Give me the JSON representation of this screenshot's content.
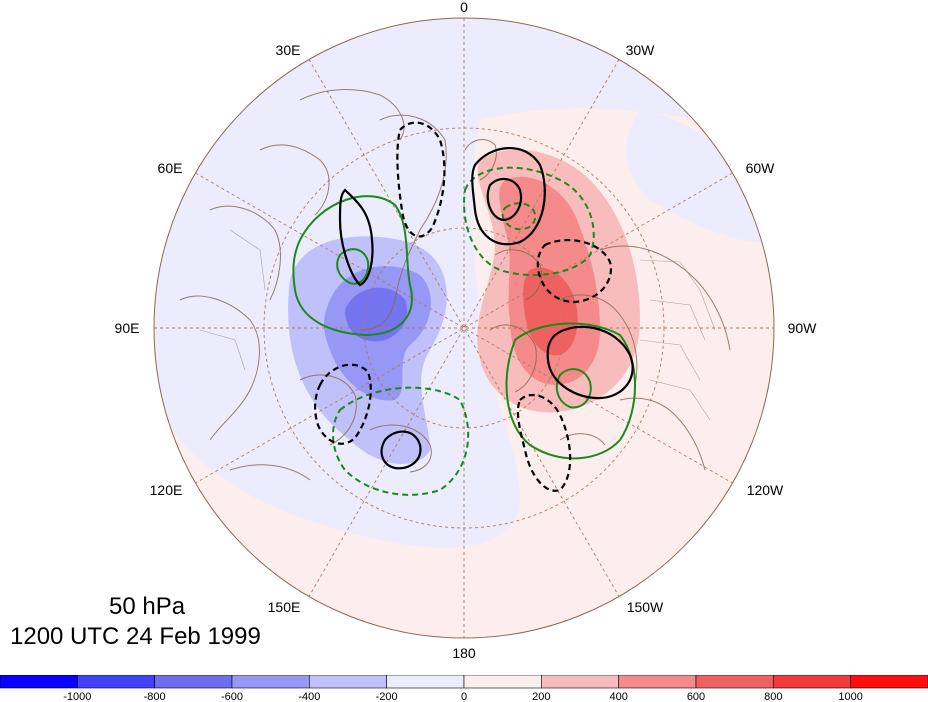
{
  "map": {
    "projection": "north-polar-stereographic",
    "longitude_labels": [
      "0",
      "30W",
      "60W",
      "90W",
      "120W",
      "150W",
      "180",
      "150E",
      "120E",
      "90E",
      "60E",
      "30E"
    ],
    "graticule": "dashed",
    "coastlines": true,
    "political_boundaries": true
  },
  "caption": {
    "level": "50 hPa",
    "time": "1200 UTC 24 Feb 1999"
  },
  "colorbar": {
    "tick_labels": [
      "-1000",
      "-800",
      "-600",
      "-400",
      "-200",
      "0",
      "200",
      "400",
      "600",
      "800",
      "1000"
    ],
    "colors": [
      "#0a00ff",
      "#4141f7",
      "#6d6df0",
      "#9797f5",
      "#c0c0fa",
      "#ececfd",
      "#fdeeee",
      "#f9bcbc",
      "#f48a8a",
      "#ef6161",
      "#f23a3a",
      "#ff0c0c"
    ]
  },
  "shading": {
    "negative_colors": [
      "#ececfd",
      "#c0c0fa",
      "#9797f5",
      "#6d6df0"
    ],
    "positive_colors": [
      "#fdeeee",
      "#f9bcbc",
      "#f48a8a",
      "#ef6161"
    ]
  },
  "contours": {
    "black_solid": "positive anomaly",
    "black_dashed": "negative anomaly",
    "green_solid": "positive",
    "green_dashed": "negative"
  }
}
